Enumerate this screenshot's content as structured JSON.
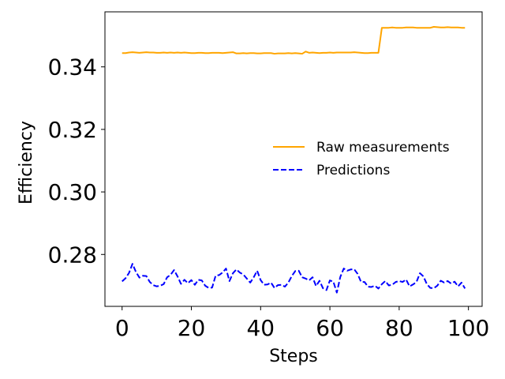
{
  "chart_data": {
    "type": "line",
    "xlabel": "Steps",
    "ylabel": "Efficiency",
    "xlim": [
      -4.95,
      103.95
    ],
    "ylim": [
      0.2634,
      0.3576
    ],
    "xticks": [
      0,
      20,
      40,
      60,
      80,
      100
    ],
    "yticks": [
      0.28,
      0.3,
      0.32,
      0.34
    ],
    "xtick_labels": [
      "0",
      "20",
      "40",
      "60",
      "80",
      "100"
    ],
    "ytick_labels": [
      "0.28",
      "0.30",
      "0.32",
      "0.34"
    ],
    "grid": false,
    "legend_position": "center-right",
    "series": [
      {
        "name": "Raw measurements",
        "color": "#ffa500",
        "dash": "solid",
        "x": [
          0,
          1,
          2,
          3,
          4,
          5,
          6,
          7,
          8,
          9,
          10,
          11,
          12,
          13,
          14,
          15,
          16,
          17,
          18,
          19,
          20,
          21,
          22,
          23,
          24,
          25,
          26,
          27,
          28,
          29,
          30,
          31,
          32,
          33,
          34,
          35,
          36,
          37,
          38,
          39,
          40,
          41,
          42,
          43,
          44,
          45,
          46,
          47,
          48,
          49,
          50,
          51,
          52,
          53,
          54,
          55,
          56,
          57,
          58,
          59,
          60,
          61,
          62,
          63,
          64,
          65,
          66,
          67,
          68,
          69,
          70,
          71,
          72,
          73,
          74,
          75,
          76,
          77,
          78,
          79,
          80,
          81,
          82,
          83,
          84,
          85,
          86,
          87,
          88,
          89,
          90,
          91,
          92,
          93,
          94,
          95,
          96,
          97,
          98,
          99
        ],
        "y": [
          0.3444,
          0.3444,
          0.3446,
          0.3447,
          0.3446,
          0.3445,
          0.3446,
          0.3447,
          0.3446,
          0.3446,
          0.3445,
          0.3445,
          0.3446,
          0.3445,
          0.3446,
          0.3445,
          0.3446,
          0.3445,
          0.3446,
          0.3445,
          0.3444,
          0.3444,
          0.3445,
          0.3445,
          0.3444,
          0.3444,
          0.3445,
          0.3445,
          0.3445,
          0.3444,
          0.3445,
          0.3446,
          0.3447,
          0.3443,
          0.3443,
          0.3444,
          0.3443,
          0.3444,
          0.3444,
          0.3443,
          0.3443,
          0.3444,
          0.3444,
          0.3444,
          0.3442,
          0.3443,
          0.3443,
          0.3443,
          0.3444,
          0.3443,
          0.3444,
          0.3443,
          0.3442,
          0.3449,
          0.3445,
          0.3446,
          0.3445,
          0.3444,
          0.3445,
          0.3445,
          0.3446,
          0.3445,
          0.3446,
          0.3446,
          0.3446,
          0.3446,
          0.3446,
          0.3447,
          0.3446,
          0.3445,
          0.3444,
          0.3444,
          0.3445,
          0.3445,
          0.3445,
          0.3525,
          0.3525,
          0.3525,
          0.3526,
          0.3525,
          0.3525,
          0.3525,
          0.3526,
          0.3526,
          0.3526,
          0.3525,
          0.3525,
          0.3525,
          0.3525,
          0.3525,
          0.3528,
          0.3527,
          0.3526,
          0.3526,
          0.3527,
          0.3526,
          0.3526,
          0.3526,
          0.3525,
          0.3525
        ]
      },
      {
        "name": "Predictions",
        "color": "#0000ff",
        "dash": "dashed",
        "x": [
          0,
          1,
          2,
          3,
          4,
          5,
          6,
          7,
          8,
          9,
          10,
          11,
          12,
          13,
          14,
          15,
          16,
          17,
          18,
          19,
          20,
          21,
          22,
          23,
          24,
          25,
          26,
          27,
          28,
          29,
          30,
          31,
          32,
          33,
          34,
          35,
          36,
          37,
          38,
          39,
          40,
          41,
          42,
          43,
          44,
          45,
          46,
          47,
          48,
          49,
          50,
          51,
          52,
          53,
          54,
          55,
          56,
          57,
          58,
          59,
          60,
          61,
          62,
          63,
          64,
          65,
          66,
          67,
          68,
          69,
          70,
          71,
          72,
          73,
          74,
          75,
          76,
          77,
          78,
          79,
          80,
          81,
          82,
          83,
          84,
          85,
          86,
          87,
          88,
          89,
          90,
          91,
          92,
          93,
          94,
          95,
          96,
          97,
          98,
          99
        ],
        "y": [
          0.2714,
          0.2724,
          0.2741,
          0.277,
          0.2744,
          0.2726,
          0.2732,
          0.2731,
          0.2712,
          0.2702,
          0.2698,
          0.27,
          0.2705,
          0.2727,
          0.2735,
          0.275,
          0.273,
          0.2706,
          0.2719,
          0.2708,
          0.2718,
          0.2703,
          0.2719,
          0.2717,
          0.27,
          0.2693,
          0.2694,
          0.2732,
          0.2734,
          0.2742,
          0.2755,
          0.2715,
          0.274,
          0.2752,
          0.2742,
          0.2736,
          0.2723,
          0.271,
          0.2727,
          0.2748,
          0.2718,
          0.2703,
          0.2704,
          0.271,
          0.2693,
          0.2702,
          0.2703,
          0.2697,
          0.271,
          0.2731,
          0.2747,
          0.2748,
          0.2727,
          0.2723,
          0.2717,
          0.2727,
          0.2699,
          0.2716,
          0.2692,
          0.2686,
          0.2717,
          0.2713,
          0.2678,
          0.2728,
          0.2755,
          0.2748,
          0.2752,
          0.2753,
          0.2738,
          0.2712,
          0.2712,
          0.2697,
          0.2696,
          0.27,
          0.2691,
          0.2705,
          0.2715,
          0.2701,
          0.2703,
          0.2712,
          0.2715,
          0.2712,
          0.272,
          0.2698,
          0.2704,
          0.2712,
          0.274,
          0.273,
          0.2705,
          0.2693,
          0.2692,
          0.27,
          0.2716,
          0.271,
          0.2715,
          0.2707,
          0.2713,
          0.2698,
          0.271,
          0.2691
        ]
      }
    ]
  }
}
